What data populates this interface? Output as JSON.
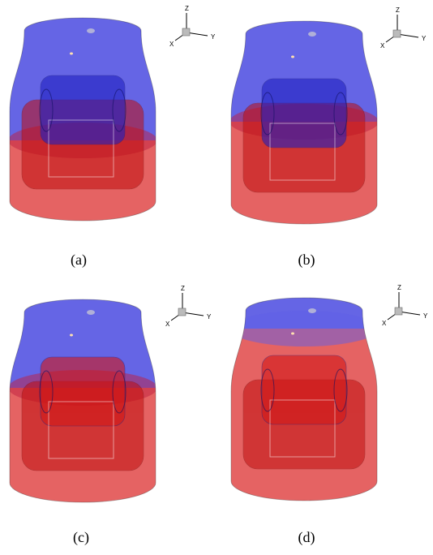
{
  "panels": [
    {
      "label": "(a)",
      "axis_labels": {
        "z": "Z",
        "y": "Y",
        "x": "X"
      }
    },
    {
      "label": "(b)",
      "axis_labels": {
        "z": "Z",
        "y": "Y",
        "x": "X"
      }
    },
    {
      "label": "(c)",
      "axis_labels": {
        "z": "Z",
        "y": "Y",
        "x": "X"
      }
    },
    {
      "label": "(d)",
      "axis_labels": {
        "z": "Z",
        "y": "Y",
        "x": "X"
      }
    }
  ]
}
